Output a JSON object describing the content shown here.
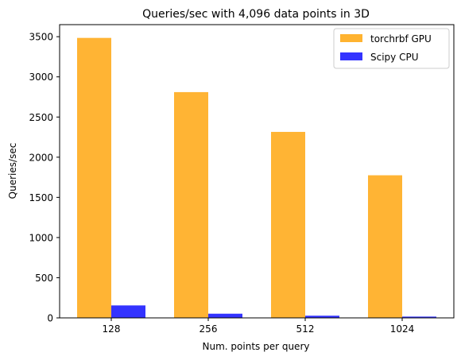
{
  "chart_data": {
    "type": "bar",
    "title": "Queries/sec with 4,096 data points in 3D",
    "xlabel": "Num. points per query",
    "ylabel": "Queries/sec",
    "categories": [
      "128",
      "256",
      "512",
      "1024"
    ],
    "ylim": [
      0,
      3650
    ],
    "yticks": [
      0,
      500,
      1000,
      1500,
      2000,
      2500,
      3000,
      3500
    ],
    "grid": false,
    "legend_position": "top-right",
    "series": [
      {
        "name": "torchrbf GPU",
        "color": "#FFB330",
        "values": [
          3485,
          2810,
          2315,
          1775
        ]
      },
      {
        "name": "Scipy CPU",
        "color": "#3333FF",
        "values": [
          155,
          52,
          27,
          16
        ]
      }
    ]
  }
}
